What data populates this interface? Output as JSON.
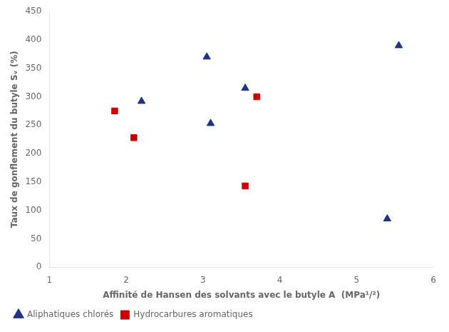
{
  "chart_data": {
    "type": "scatter",
    "x_label": "Affinité de Hansen des solvants avec le butyle A  (MPa¹/²)",
    "y_label": "Taux de gonflement du butyle Sᵥ (%)",
    "series": [
      {
        "name": "Aliphatiques chlorés",
        "color": "#1F3384",
        "marker": "triangle",
        "x": [
          2.2,
          3.05,
          3.1,
          3.55,
          5.4,
          5.55
        ],
        "values": [
          292,
          370,
          253,
          315,
          85,
          390
        ]
      },
      {
        "name": "Hydrocarbures aromatiques",
        "color": "#CC0000",
        "marker": "square",
        "x": [
          1.85,
          2.1,
          3.55,
          3.7
        ],
        "values": [
          275,
          228,
          143,
          300
        ]
      }
    ],
    "xlim": [
      1,
      6
    ],
    "xticks": [
      1,
      2,
      3,
      4,
      5,
      6
    ],
    "ylim": [
      0,
      450
    ],
    "yticks": [
      0,
      50,
      100,
      150,
      200,
      250,
      300,
      350,
      400,
      450
    ],
    "grid": false,
    "legend": "lower left"
  }
}
